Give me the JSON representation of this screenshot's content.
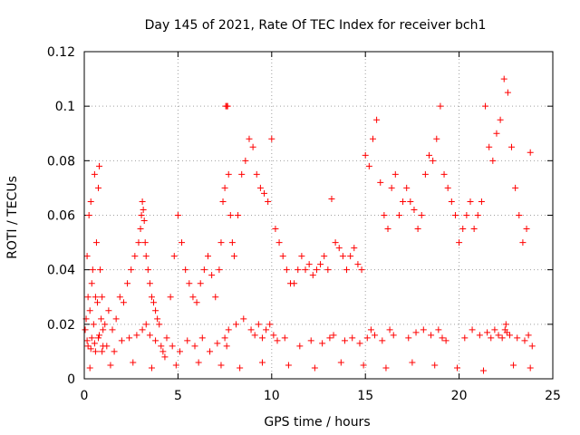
{
  "chart_data": {
    "type": "scatter",
    "title": "Day 145 of 2021, Rate Of TEC Index for receiver bch1",
    "xlabel": "GPS time / hours",
    "ylabel": "ROTI / TECUs",
    "xlim": [
      0,
      25
    ],
    "ylim": [
      0,
      0.12
    ],
    "xticks": [
      0,
      5,
      10,
      15,
      20,
      25
    ],
    "xtick_labels": [
      "0",
      "5",
      "10",
      "15",
      "20",
      "25"
    ],
    "yticks": [
      0,
      0.02,
      0.04,
      0.06,
      0.08,
      0.1,
      0.12
    ],
    "ytick_labels": [
      "0",
      "0.02",
      "0.04",
      "0.06",
      "0.08",
      "0.1",
      "0.12"
    ],
    "grid": true,
    "marker": "plus",
    "color": "#ff0000",
    "series": [
      {
        "name": "ROTI",
        "x": [
          0.05,
          0.1,
          0.15,
          0.2,
          0.25,
          0.3,
          0.35,
          0.4,
          0.45,
          0.5,
          0.55,
          0.6,
          0.65,
          0.7,
          0.75,
          0.8,
          0.85,
          0.9,
          0.95,
          1.0,
          0.2,
          0.4,
          0.6,
          0.8,
          1.0,
          0.15,
          0.35,
          0.55,
          0.75,
          0.95,
          1.1,
          1.3,
          1.5,
          1.7,
          1.9,
          2.1,
          2.3,
          2.5,
          2.7,
          2.9,
          3.0,
          3.05,
          3.1,
          3.15,
          3.2,
          3.25,
          3.3,
          3.4,
          3.5,
          3.6,
          3.7,
          3.8,
          3.9,
          4.0,
          1.2,
          1.6,
          2.0,
          2.4,
          2.8,
          3.1,
          3.3,
          3.5,
          3.8,
          4.1,
          4.2,
          4.4,
          4.6,
          4.8,
          5.0,
          5.2,
          5.4,
          5.6,
          5.8,
          6.0,
          6.2,
          6.4,
          6.6,
          6.8,
          7.0,
          7.2,
          4.3,
          4.7,
          5.1,
          5.5,
          5.9,
          6.3,
          6.7,
          7.1,
          7.3,
          7.4,
          7.5,
          7.55,
          7.6,
          7.65,
          7.7,
          7.8,
          7.9,
          8.0,
          8.2,
          8.4,
          8.6,
          8.8,
          9.0,
          9.2,
          9.4,
          9.6,
          9.8,
          10.0,
          10.2,
          10.4,
          10.6,
          10.8,
          11.0,
          7.5,
          7.6,
          7.7,
          8.1,
          8.5,
          8.9,
          9.1,
          9.3,
          9.5,
          9.7,
          9.9,
          10.1,
          10.3,
          10.7,
          11.2,
          11.4,
          11.6,
          11.8,
          12.0,
          12.2,
          12.4,
          12.6,
          12.8,
          13.0,
          13.2,
          13.4,
          13.6,
          13.8,
          14.0,
          14.2,
          14.4,
          14.6,
          14.8,
          11.5,
          12.1,
          12.7,
          13.1,
          13.3,
          13.9,
          14.3,
          14.7,
          15.0,
          15.2,
          15.4,
          15.6,
          15.8,
          16.0,
          16.2,
          16.4,
          16.6,
          16.8,
          17.0,
          17.2,
          17.4,
          17.6,
          17.8,
          18.0,
          18.2,
          18.4,
          18.6,
          18.8,
          19.0,
          19.2,
          19.4,
          19.6,
          19.8,
          15.1,
          15.3,
          15.5,
          15.9,
          16.3,
          16.5,
          17.3,
          17.7,
          18.1,
          18.5,
          18.9,
          19.1,
          19.3,
          20.0,
          20.2,
          20.4,
          20.6,
          20.8,
          21.0,
          21.2,
          21.4,
          21.6,
          21.8,
          22.0,
          22.2,
          22.4,
          22.6,
          22.8,
          23.0,
          23.2,
          23.4,
          23.6,
          23.8,
          20.3,
          20.7,
          21.1,
          21.5,
          21.7,
          21.9,
          22.1,
          22.3,
          22.45,
          22.5,
          22.55,
          22.7,
          23.1,
          23.5,
          23.7,
          23.9,
          0.3,
          1.4,
          2.6,
          3.6,
          4.9,
          6.1,
          7.3,
          8.3,
          9.5,
          10.9,
          12.3,
          13.7,
          14.9,
          16.1,
          17.5,
          18.7,
          19.9,
          21.3,
          22.9,
          23.8
        ],
        "y": [
          0.018,
          0.022,
          0.045,
          0.03,
          0.06,
          0.025,
          0.065,
          0.035,
          0.04,
          0.02,
          0.075,
          0.03,
          0.05,
          0.028,
          0.07,
          0.078,
          0.04,
          0.022,
          0.03,
          0.018,
          0.012,
          0.015,
          0.01,
          0.016,
          0.012,
          0.014,
          0.011,
          0.013,
          0.015,
          0.01,
          0.02,
          0.025,
          0.018,
          0.022,
          0.03,
          0.028,
          0.035,
          0.04,
          0.045,
          0.05,
          0.055,
          0.06,
          0.065,
          0.062,
          0.058,
          0.05,
          0.045,
          0.04,
          0.035,
          0.03,
          0.028,
          0.025,
          0.022,
          0.02,
          0.012,
          0.01,
          0.014,
          0.015,
          0.016,
          0.018,
          0.02,
          0.016,
          0.014,
          0.012,
          0.01,
          0.015,
          0.03,
          0.045,
          0.06,
          0.05,
          0.04,
          0.035,
          0.03,
          0.028,
          0.035,
          0.04,
          0.045,
          0.038,
          0.03,
          0.04,
          0.008,
          0.012,
          0.01,
          0.014,
          0.012,
          0.015,
          0.01,
          0.013,
          0.05,
          0.065,
          0.07,
          0.1,
          0.1,
          0.1,
          0.075,
          0.06,
          0.05,
          0.045,
          0.06,
          0.075,
          0.08,
          0.088,
          0.085,
          0.075,
          0.07,
          0.068,
          0.065,
          0.088,
          0.055,
          0.05,
          0.045,
          0.04,
          0.035,
          0.015,
          0.012,
          0.018,
          0.02,
          0.022,
          0.018,
          0.016,
          0.02,
          0.015,
          0.018,
          0.02,
          0.016,
          0.014,
          0.015,
          0.035,
          0.04,
          0.045,
          0.04,
          0.042,
          0.038,
          0.04,
          0.042,
          0.045,
          0.04,
          0.066,
          0.05,
          0.048,
          0.045,
          0.04,
          0.045,
          0.048,
          0.042,
          0.04,
          0.012,
          0.014,
          0.013,
          0.015,
          0.016,
          0.014,
          0.015,
          0.013,
          0.082,
          0.078,
          0.088,
          0.095,
          0.072,
          0.06,
          0.055,
          0.07,
          0.075,
          0.06,
          0.065,
          0.07,
          0.065,
          0.062,
          0.055,
          0.06,
          0.075,
          0.082,
          0.08,
          0.088,
          0.1,
          0.075,
          0.07,
          0.065,
          0.06,
          0.015,
          0.018,
          0.016,
          0.014,
          0.018,
          0.016,
          0.015,
          0.017,
          0.018,
          0.016,
          0.018,
          0.015,
          0.014,
          0.05,
          0.055,
          0.06,
          0.065,
          0.055,
          0.06,
          0.065,
          0.1,
          0.085,
          0.08,
          0.09,
          0.095,
          0.11,
          0.105,
          0.085,
          0.07,
          0.06,
          0.05,
          0.055,
          0.083,
          0.015,
          0.018,
          0.016,
          0.017,
          0.015,
          0.018,
          0.016,
          0.015,
          0.018,
          0.02,
          0.017,
          0.016,
          0.015,
          0.014,
          0.016,
          0.012,
          0.004,
          0.005,
          0.006,
          0.004,
          0.005,
          0.006,
          0.005,
          0.004,
          0.006,
          0.005,
          0.004,
          0.006,
          0.005,
          0.004,
          0.006,
          0.005,
          0.004,
          0.003,
          0.005,
          0.004
        ]
      }
    ]
  }
}
